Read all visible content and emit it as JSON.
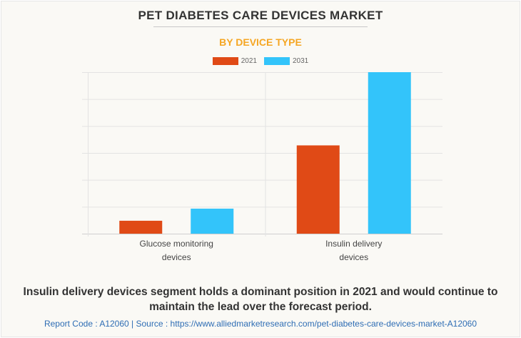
{
  "colors": {
    "series_2021": "#e04a16",
    "series_2031": "#33c4fa",
    "title": "#333333",
    "subtitle": "#f5a623",
    "source": "#2e6db4"
  },
  "header": {
    "title": "PET DIABETES CARE DEVICES MARKET",
    "subtitle": "BY DEVICE TYPE"
  },
  "chart_data": {
    "type": "bar",
    "title": "PET DIABETES CARE DEVICES MARKET",
    "subtitle": "BY DEVICE TYPE",
    "xlabel": "",
    "ylabel": "",
    "categories": [
      [
        "Glucose monitoring",
        "devices"
      ],
      [
        "Insulin delivery",
        "devices"
      ]
    ],
    "series": [
      {
        "name": "2021",
        "values": [
          0.48,
          3.28
        ]
      },
      {
        "name": "2031",
        "values": [
          0.93,
          6.0
        ]
      }
    ],
    "ylim": [
      0,
      6
    ],
    "y_gridlines": 6,
    "y_tick_labels_shown": false,
    "grid": true,
    "legend_position": "top-center"
  },
  "footer": {
    "insight": "Insulin delivery devices segment holds a dominant position in 2021 and would continue to maintain the lead over the forecast period.",
    "source": "Report Code : A12060  |  Source : https://www.alliedmarketresearch.com/pet-diabetes-care-devices-market-A12060"
  }
}
